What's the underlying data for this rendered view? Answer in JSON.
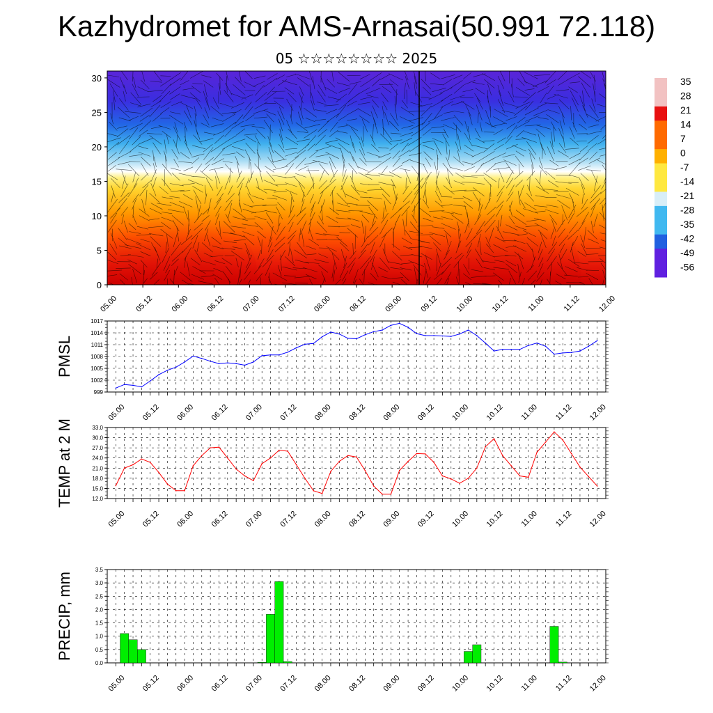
{
  "title": "Kazhydromet for AMS-Arnasai(50.991 72.118)",
  "subtitle": "05 ☆☆☆☆☆☆☆☆ 2025",
  "colors": {
    "pmsl_line": "#0000ff",
    "temp_line": "#ff0000",
    "precip_bar": "#00ee00",
    "wind_lines": "#000000"
  },
  "chart_data": [
    {
      "type": "heatmap",
      "name": "cross-section",
      "y_ticks": [
        "0",
        "5",
        "10",
        "15",
        "20",
        "25",
        "30"
      ],
      "ylim": [
        0,
        31
      ],
      "x_ticks": [
        "05.00",
        "05.12",
        "06.00",
        "06.12",
        "07.00",
        "07.12",
        "08.00",
        "08.12",
        "09.00",
        "09.12",
        "10.00",
        "10.12",
        "11.00",
        "11.12",
        "12.00"
      ],
      "colorbar_labels": [
        "35",
        "28",
        "21",
        "14",
        "7",
        "0",
        "-7",
        "-14",
        "-21",
        "-28",
        "-35",
        "-42",
        "-49",
        "-56"
      ],
      "colorbar_colors": [
        "#f2c2c2",
        "#e81010",
        "#ff6a00",
        "#ffb000",
        "#ffe840",
        "#d8eef8",
        "#40b8f0",
        "#2060e0",
        "#6020e0"
      ]
    },
    {
      "type": "line",
      "name": "PMSL",
      "ylabel": "PMSL",
      "y_ticks": [
        "1017",
        "1014",
        "1011",
        "1008",
        "1005",
        "1002",
        "999"
      ],
      "ylim": [
        999,
        1017
      ],
      "x_ticks": [
        "05.00",
        "05.12",
        "06.00",
        "06.12",
        "07.00",
        "07.12",
        "08.00",
        "08.12",
        "09.00",
        "09.12",
        "10.00",
        "10.12",
        "11.00",
        "11.12",
        "12.00"
      ],
      "x": [
        0,
        3,
        6,
        9,
        12,
        15,
        18,
        21,
        24,
        27,
        30,
        33,
        36,
        39,
        42,
        45,
        48,
        51,
        54,
        57,
        60,
        63,
        66,
        69,
        72,
        75,
        78,
        81,
        84,
        87,
        90,
        93,
        96,
        99,
        102,
        105,
        108,
        111,
        114,
        117,
        120,
        123,
        126,
        129,
        132,
        135,
        138,
        141,
        144,
        147,
        150,
        153,
        156,
        159,
        162,
        165,
        168
      ],
      "values": [
        1000.0,
        1000.9,
        1000.7,
        1000.3,
        1001.8,
        1003.4,
        1004.5,
        1005.3,
        1006.6,
        1008.1,
        1007.5,
        1006.8,
        1006.2,
        1006.4,
        1006.2,
        1005.8,
        1006.6,
        1008.2,
        1008.4,
        1008.4,
        1009.1,
        1010.2,
        1011.1,
        1011.3,
        1013.0,
        1014.2,
        1013.7,
        1012.6,
        1012.5,
        1013.5,
        1014.3,
        1014.7,
        1015.9,
        1016.4,
        1015.4,
        1013.8,
        1013.3,
        1013.3,
        1013.2,
        1013.1,
        1013.7,
        1014.7,
        1013.3,
        1011.4,
        1009.4,
        1009.8,
        1009.8,
        1009.8,
        1010.8,
        1011.4,
        1010.6,
        1008.6,
        1008.9,
        1009.0,
        1009.4,
        1010.6,
        1012.0
      ]
    },
    {
      "type": "line",
      "name": "TEMP at 2 M",
      "ylabel": "TEMP at 2 M",
      "y_ticks": [
        "33.0",
        "30.0",
        "27.0",
        "24.0",
        "21.0",
        "18.0",
        "15.0",
        "12.0"
      ],
      "ylim": [
        12,
        33
      ],
      "x_ticks": [
        "05.00",
        "05.12",
        "06.00",
        "06.12",
        "07.00",
        "07.12",
        "08.00",
        "08.12",
        "09.00",
        "09.12",
        "10.00",
        "10.12",
        "11.00",
        "11.12",
        "12.00"
      ],
      "x": [
        0,
        3,
        6,
        9,
        12,
        15,
        18,
        21,
        24,
        27,
        30,
        33,
        36,
        39,
        42,
        45,
        48,
        51,
        54,
        57,
        60,
        63,
        66,
        69,
        72,
        75,
        78,
        81,
        84,
        87,
        90,
        93,
        96,
        99,
        102,
        105,
        108,
        111,
        114,
        117,
        120,
        123,
        126,
        129,
        132,
        135,
        138,
        141,
        144,
        147,
        150,
        153,
        156,
        159,
        162,
        165,
        168
      ],
      "values": [
        15.8,
        21.0,
        22.0,
        23.7,
        22.7,
        19.7,
        16.3,
        14.3,
        14.3,
        21.7,
        24.7,
        27.0,
        27.2,
        24.0,
        20.7,
        18.7,
        17.3,
        22.3,
        24.0,
        26.3,
        26.0,
        22.0,
        18.0,
        14.3,
        13.5,
        20.0,
        23.0,
        24.7,
        24.3,
        20.3,
        15.7,
        13.3,
        13.3,
        20.3,
        23.0,
        25.3,
        25.2,
        22.7,
        18.7,
        17.8,
        16.5,
        18.0,
        21.0,
        27.3,
        29.7,
        24.7,
        21.7,
        18.7,
        18.3,
        25.7,
        28.7,
        31.7,
        29.3,
        25.3,
        21.3,
        18.5,
        15.7
      ]
    },
    {
      "type": "bar",
      "name": "PRECIP, mm",
      "ylabel": "PRECIP, mm",
      "y_ticks": [
        "3.5",
        "3.0",
        "2.5",
        "2.0",
        "1.5",
        "1.0",
        "0.5",
        "0.0"
      ],
      "ylim": [
        0,
        3.5
      ],
      "x_ticks": [
        "05.00",
        "05.12",
        "06.00",
        "06.12",
        "07.00",
        "07.12",
        "08.00",
        "08.12",
        "09.00",
        "09.12",
        "10.00",
        "10.12",
        "11.00",
        "11.12",
        "12.00"
      ],
      "x": [
        3,
        6,
        9,
        51,
        54,
        57,
        60,
        123,
        126,
        153,
        156
      ],
      "values": [
        1.1,
        0.87,
        0.5,
        0.02,
        1.82,
        3.05,
        0.05,
        0.43,
        0.68,
        1.37,
        0.03
      ]
    }
  ]
}
